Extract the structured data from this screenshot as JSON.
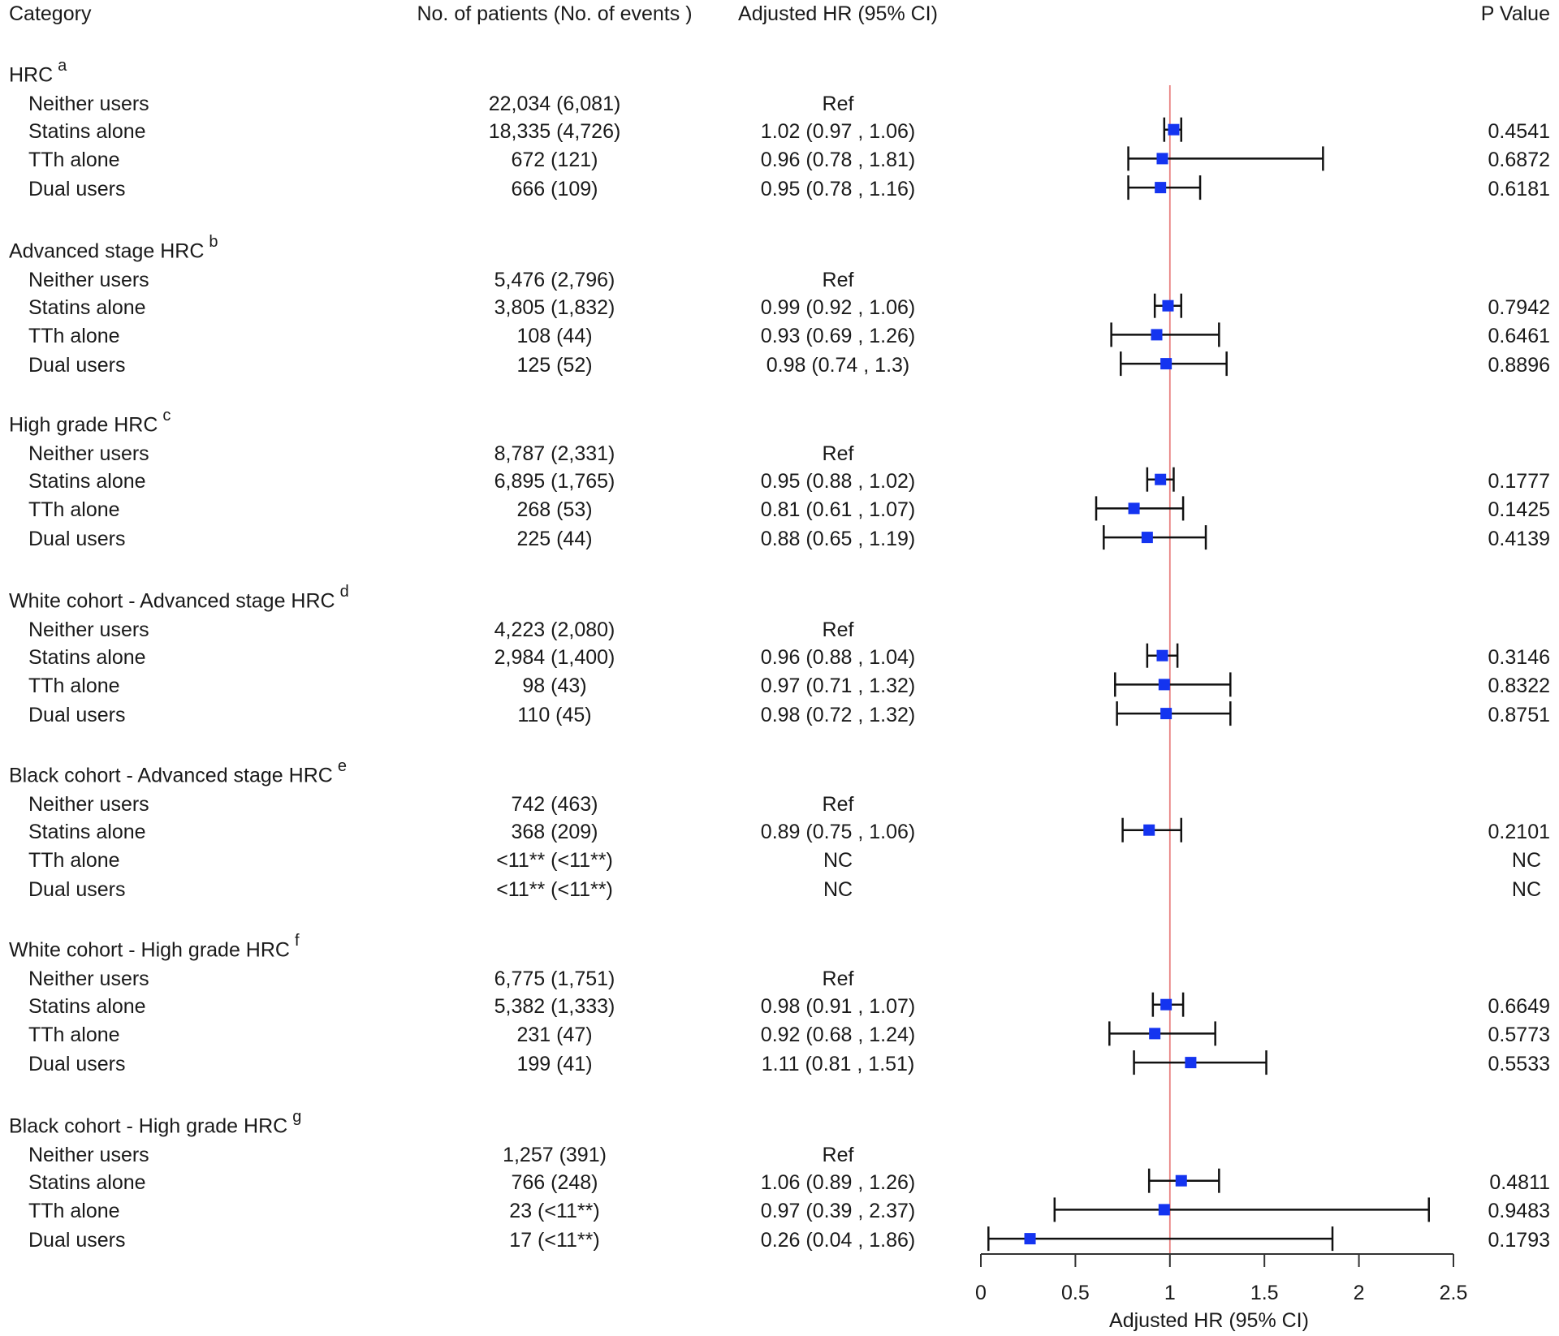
{
  "headers": {
    "category": "Category",
    "patients": "No. of patients (No. of events )",
    "hr": "Adjusted HR (95% CI)",
    "p": "P Value"
  },
  "colors": {
    "marker": "#1434f0",
    "ci_line": "#111111",
    "ref_line": "#e8807f",
    "axis": "#333333"
  },
  "chart_data": {
    "type": "forest",
    "xlabel": "Adjusted HR (95% CI)",
    "xlim": [
      0,
      2.5
    ],
    "xticks": [
      0,
      0.5,
      1,
      1.5,
      2,
      2.5
    ],
    "xtick_labels": [
      "0",
      "0.5",
      "1",
      "1.5",
      "2",
      "2.5"
    ],
    "reference_line": 1,
    "groups": [
      {
        "title": "HRC",
        "sup": "a",
        "rows": [
          {
            "label": "Neither users",
            "n": "22,034 (6,081)",
            "hr_text": "Ref",
            "hr": null,
            "lo": null,
            "hi": null,
            "p": ""
          },
          {
            "label": "Statins alone",
            "n": "18,335 (4,726)",
            "hr_text": "1.02 (0.97 , 1.06)",
            "hr": 1.02,
            "lo": 0.97,
            "hi": 1.06,
            "p": "0.4541"
          },
          {
            "label": "TTh alone",
            "n": "672 (121)",
            "hr_text": "0.96 (0.78 , 1.81)",
            "hr": 0.96,
            "lo": 0.78,
            "hi": 1.81,
            "p": "0.6872"
          },
          {
            "label": "Dual users",
            "n": "666 (109)",
            "hr_text": "0.95 (0.78 , 1.16)",
            "hr": 0.95,
            "lo": 0.78,
            "hi": 1.16,
            "p": "0.6181"
          }
        ]
      },
      {
        "title": "Advanced stage HRC",
        "sup": "b",
        "rows": [
          {
            "label": "Neither users",
            "n": "5,476 (2,796)",
            "hr_text": "Ref",
            "hr": null,
            "lo": null,
            "hi": null,
            "p": ""
          },
          {
            "label": "Statins alone",
            "n": "3,805 (1,832)",
            "hr_text": "0.99 (0.92 , 1.06)",
            "hr": 0.99,
            "lo": 0.92,
            "hi": 1.06,
            "p": "0.7942"
          },
          {
            "label": "TTh alone",
            "n": "108 (44)",
            "hr_text": "0.93 (0.69 , 1.26)",
            "hr": 0.93,
            "lo": 0.69,
            "hi": 1.26,
            "p": "0.6461"
          },
          {
            "label": "Dual users",
            "n": "125 (52)",
            "hr_text": "0.98 (0.74 , 1.3)",
            "hr": 0.98,
            "lo": 0.74,
            "hi": 1.3,
            "p": "0.8896"
          }
        ]
      },
      {
        "title": "High grade HRC",
        "sup": "c",
        "rows": [
          {
            "label": "Neither users",
            "n": "8,787 (2,331)",
            "hr_text": "Ref",
            "hr": null,
            "lo": null,
            "hi": null,
            "p": ""
          },
          {
            "label": "Statins alone",
            "n": "6,895 (1,765)",
            "hr_text": "0.95 (0.88 , 1.02)",
            "hr": 0.95,
            "lo": 0.88,
            "hi": 1.02,
            "p": "0.1777"
          },
          {
            "label": "TTh alone",
            "n": "268 (53)",
            "hr_text": "0.81 (0.61 , 1.07)",
            "hr": 0.81,
            "lo": 0.61,
            "hi": 1.07,
            "p": "0.1425"
          },
          {
            "label": "Dual users",
            "n": "225 (44)",
            "hr_text": "0.88 (0.65 , 1.19)",
            "hr": 0.88,
            "lo": 0.65,
            "hi": 1.19,
            "p": "0.4139"
          }
        ]
      },
      {
        "title": "White cohort - Advanced stage HRC",
        "sup": "d",
        "rows": [
          {
            "label": "Neither users",
            "n": "4,223 (2,080)",
            "hr_text": "Ref",
            "hr": null,
            "lo": null,
            "hi": null,
            "p": ""
          },
          {
            "label": "Statins alone",
            "n": "2,984 (1,400)",
            "hr_text": "0.96 (0.88 , 1.04)",
            "hr": 0.96,
            "lo": 0.88,
            "hi": 1.04,
            "p": "0.3146"
          },
          {
            "label": "TTh alone",
            "n": "98 (43)",
            "hr_text": "0.97 (0.71 , 1.32)",
            "hr": 0.97,
            "lo": 0.71,
            "hi": 1.32,
            "p": "0.8322"
          },
          {
            "label": "Dual users",
            "n": "110 (45)",
            "hr_text": "0.98 (0.72 , 1.32)",
            "hr": 0.98,
            "lo": 0.72,
            "hi": 1.32,
            "p": "0.8751"
          }
        ]
      },
      {
        "title": "Black cohort - Advanced stage HRC",
        "sup": "e",
        "rows": [
          {
            "label": "Neither users",
            "n": "742 (463)",
            "hr_text": "Ref",
            "hr": null,
            "lo": null,
            "hi": null,
            "p": ""
          },
          {
            "label": "Statins alone",
            "n": "368 (209)",
            "hr_text": "0.89 (0.75 , 1.06)",
            "hr": 0.89,
            "lo": 0.75,
            "hi": 1.06,
            "p": "0.2101"
          },
          {
            "label": "TTh alone",
            "n": "<11** (<11**)",
            "hr_text": "NC",
            "hr": null,
            "lo": null,
            "hi": null,
            "p": "NC"
          },
          {
            "label": "Dual users",
            "n": "<11** (<11**)",
            "hr_text": "NC",
            "hr": null,
            "lo": null,
            "hi": null,
            "p": "NC"
          }
        ]
      },
      {
        "title": "White cohort - High grade HRC",
        "sup": "f",
        "rows": [
          {
            "label": "Neither users",
            "n": "6,775 (1,751)",
            "hr_text": "Ref",
            "hr": null,
            "lo": null,
            "hi": null,
            "p": ""
          },
          {
            "label": "Statins alone",
            "n": "5,382 (1,333)",
            "hr_text": "0.98 (0.91 , 1.07)",
            "hr": 0.98,
            "lo": 0.91,
            "hi": 1.07,
            "p": "0.6649"
          },
          {
            "label": "TTh alone",
            "n": "231 (47)",
            "hr_text": "0.92 (0.68 , 1.24)",
            "hr": 0.92,
            "lo": 0.68,
            "hi": 1.24,
            "p": "0.5773"
          },
          {
            "label": "Dual users",
            "n": "199 (41)",
            "hr_text": "1.11 (0.81 , 1.51)",
            "hr": 1.11,
            "lo": 0.81,
            "hi": 1.51,
            "p": "0.5533"
          }
        ]
      },
      {
        "title": "Black cohort - High grade HRC",
        "sup": "g",
        "rows": [
          {
            "label": "Neither users",
            "n": "1,257 (391)",
            "hr_text": "Ref",
            "hr": null,
            "lo": null,
            "hi": null,
            "p": ""
          },
          {
            "label": "Statins alone",
            "n": "766 (248)",
            "hr_text": "1.06 (0.89 , 1.26)",
            "hr": 1.06,
            "lo": 0.89,
            "hi": 1.26,
            "p": "0.4811"
          },
          {
            "label": "TTh alone",
            "n": "23 (<11**)",
            "hr_text": "0.97 (0.39 , 2.37)",
            "hr": 0.97,
            "lo": 0.39,
            "hi": 2.37,
            "p": "0.9483"
          },
          {
            "label": "Dual users",
            "n": "17 (<11**)",
            "hr_text": "0.26 (0.04 , 1.86)",
            "hr": 0.26,
            "lo": 0.04,
            "hi": 1.86,
            "p": "0.1793"
          }
        ]
      }
    ]
  }
}
